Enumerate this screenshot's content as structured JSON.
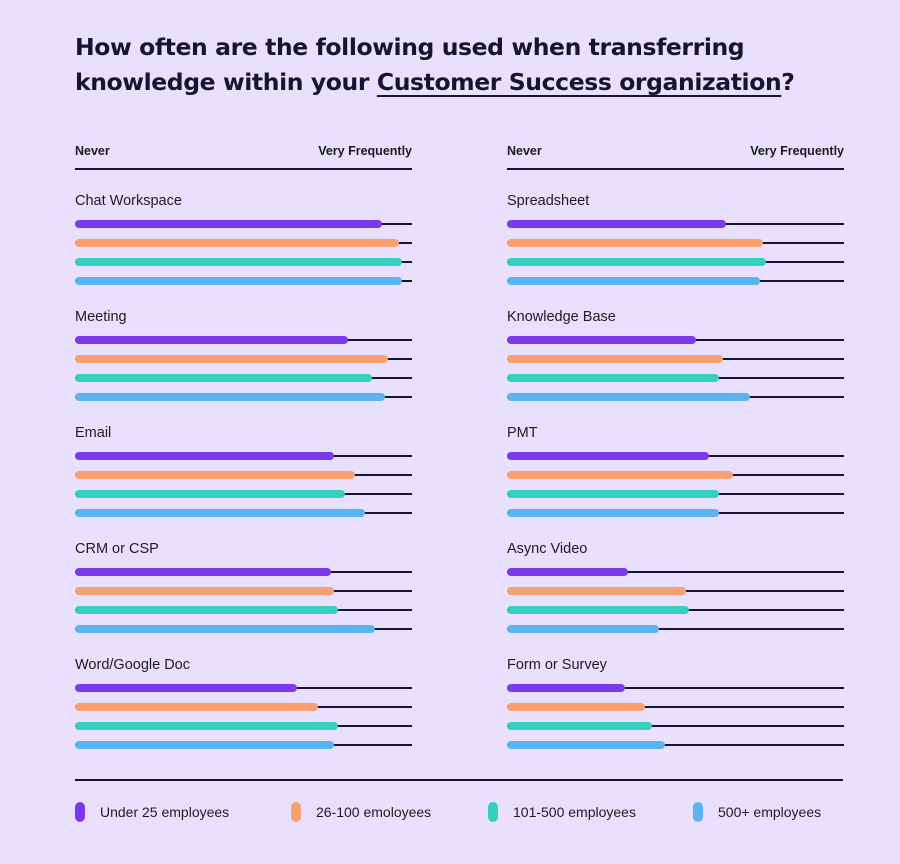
{
  "title": {
    "before": "How often are the following used when transferring knowledge within your ",
    "highlight": "Customer Success organization",
    "after": "?"
  },
  "axis": {
    "min_label": "Never",
    "max_label": "Very Frequently"
  },
  "legend": [
    {
      "label": "Under 25 employees",
      "color": "#7c3aed"
    },
    {
      "label": "26-100 emoloyees",
      "color": "#f9a070"
    },
    {
      "label": "101-500 employees",
      "color": "#35cfc0"
    },
    {
      "label": "500+ employees",
      "color": "#5ab4f0"
    }
  ],
  "chart_data": {
    "type": "bar",
    "orientation": "horizontal",
    "scale": [
      0,
      100
    ],
    "scale_note": "relative frequency from Never to Very Frequently",
    "series": [
      {
        "name": "Under 25 employees"
      },
      {
        "name": "26-100 emoloyees"
      },
      {
        "name": "101-500 employees"
      },
      {
        "name": "500+ employees"
      }
    ],
    "panels": [
      {
        "groups": [
          {
            "label": "Chat Workspace",
            "values": [
              91,
              96,
              97,
              97
            ]
          },
          {
            "label": "Meeting",
            "values": [
              81,
              93,
              88,
              92
            ]
          },
          {
            "label": "Email",
            "values": [
              77,
              83,
              80,
              86
            ]
          },
          {
            "label": "CRM or CSP",
            "values": [
              76,
              77,
              78,
              89
            ]
          },
          {
            "label": "Word/Google Doc",
            "values": [
              66,
              72,
              78,
              77
            ]
          }
        ]
      },
      {
        "groups": [
          {
            "label": "Spreadsheet",
            "values": [
              65,
              76,
              77,
              75
            ]
          },
          {
            "label": "Knowledge Base",
            "values": [
              56,
              64,
              63,
              72
            ]
          },
          {
            "label": "PMT",
            "values": [
              60,
              67,
              63,
              63
            ]
          },
          {
            "label": "Async Video",
            "values": [
              36,
              53,
              54,
              45
            ]
          },
          {
            "label": "Form or Survey",
            "values": [
              35,
              41,
              43,
              47
            ]
          }
        ]
      }
    ]
  }
}
